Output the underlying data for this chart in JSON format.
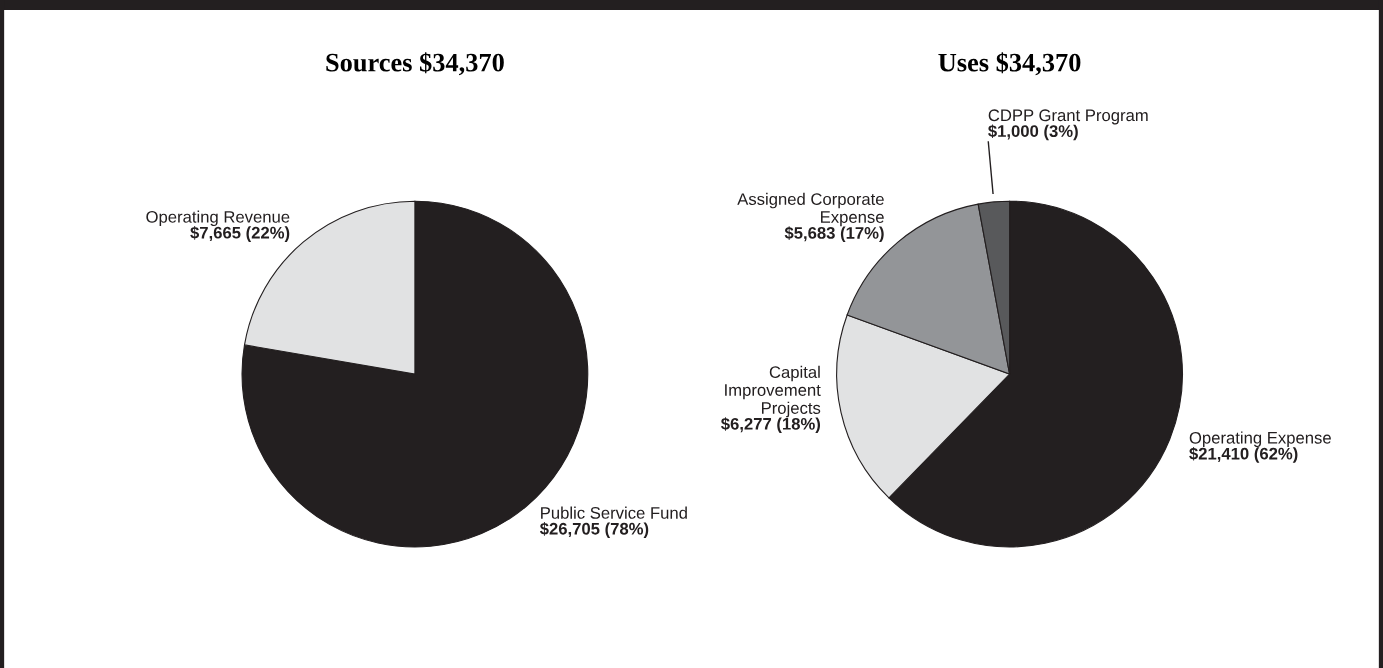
{
  "chart_data": [
    {
      "type": "pie",
      "title": "Sources $34,370",
      "categories": [
        "Public Service Fund",
        "Operating Revenue"
      ],
      "values": [
        26705,
        7665
      ],
      "value_labels": [
        "$26,705 (78%)",
        "$7,665 (22%)"
      ],
      "colors": [
        "#231f20",
        "#e1e2e3"
      ]
    },
    {
      "type": "pie",
      "title": "Uses $34,370",
      "categories": [
        "Operating Expense",
        "Capital\nImprovement\nProjects",
        "Assigned Corporate\nExpense",
        "CDPP Grant Program"
      ],
      "values": [
        21410,
        6277,
        5683,
        1000
      ],
      "value_labels": [
        "$21,410 (62%)",
        "$6,277 (18%)",
        "$5,683 (17%)",
        "$1,000 (3%)"
      ],
      "colors": [
        "#231f20",
        "#e1e2e3",
        "#939598",
        "#58595b"
      ]
    }
  ]
}
